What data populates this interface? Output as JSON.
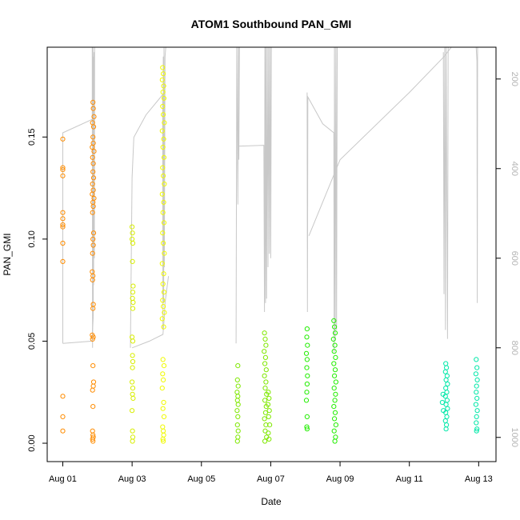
{
  "chart_data": {
    "type": "scatter",
    "title": "ATOM1 Southbound PAN_GMI",
    "xlabel": "Date",
    "ylabel": "PAN_GMI",
    "x_ticks": [
      "Aug 01",
      "Aug 03",
      "Aug 05",
      "Aug 07",
      "Aug 09",
      "Aug 11",
      "Aug 13"
    ],
    "x_tick_days": [
      1,
      3,
      5,
      7,
      9,
      11,
      13
    ],
    "x_range_days": [
      0.55,
      13.5
    ],
    "ylim": [
      -0.009,
      0.194
    ],
    "y_ticks": [
      0.0,
      0.05,
      0.1,
      0.15
    ],
    "y_tick_labels": [
      "0.00",
      "0.05",
      "0.10",
      "0.15"
    ],
    "right_axis": {
      "ticks": [
        200,
        400,
        600,
        800,
        1000
      ],
      "range": [
        1054,
        129
      ],
      "color": "#b4b4b4"
    },
    "grid": false,
    "legend": "none",
    "marker": "open circle",
    "altitude_color": "#c8c8c8",
    "series": [
      {
        "color": "#ff8c00",
        "points": [
          [
            1.0,
            0.149
          ],
          [
            1.0,
            0.135
          ],
          [
            1.0,
            0.134
          ],
          [
            1.0,
            0.131
          ],
          [
            1.0,
            0.113
          ],
          [
            1.0,
            0.11
          ],
          [
            1.0,
            0.107
          ],
          [
            1.0,
            0.106
          ],
          [
            1.0,
            0.098
          ],
          [
            1.0,
            0.089
          ],
          [
            1.0,
            0.023
          ],
          [
            1.0,
            0.013
          ],
          [
            1.0,
            0.006
          ],
          [
            1.87,
            0.167
          ],
          [
            1.88,
            0.164
          ],
          [
            1.9,
            0.16
          ],
          [
            1.86,
            0.157
          ],
          [
            1.89,
            0.155
          ],
          [
            1.87,
            0.15
          ],
          [
            1.88,
            0.147
          ],
          [
            1.85,
            0.145
          ],
          [
            1.9,
            0.143
          ],
          [
            1.86,
            0.14
          ],
          [
            1.88,
            0.137
          ],
          [
            1.87,
            0.133
          ],
          [
            1.89,
            0.13
          ],
          [
            1.86,
            0.127
          ],
          [
            1.88,
            0.124
          ],
          [
            1.85,
            0.122
          ],
          [
            1.9,
            0.12
          ],
          [
            1.87,
            0.118
          ],
          [
            1.88,
            0.116
          ],
          [
            1.86,
            0.113
          ],
          [
            1.89,
            0.103
          ],
          [
            1.87,
            0.1
          ],
          [
            1.88,
            0.097
          ],
          [
            1.86,
            0.093
          ],
          [
            1.85,
            0.084
          ],
          [
            1.87,
            0.082
          ],
          [
            1.86,
            0.08
          ],
          [
            1.88,
            0.068
          ],
          [
            1.87,
            0.066
          ],
          [
            1.85,
            0.053
          ],
          [
            1.88,
            0.052
          ],
          [
            1.86,
            0.051
          ],
          [
            1.87,
            0.038
          ],
          [
            1.89,
            0.03
          ],
          [
            1.88,
            0.028
          ],
          [
            1.86,
            0.026
          ],
          [
            1.87,
            0.018
          ],
          [
            1.86,
            0.006
          ],
          [
            1.87,
            0.004
          ],
          [
            1.88,
            0.003
          ],
          [
            1.86,
            0.002
          ],
          [
            1.87,
            0.001
          ]
        ]
      },
      {
        "color": "#d8ee00",
        "points": [
          [
            3.0,
            0.106
          ],
          [
            3.01,
            0.103
          ],
          [
            3.0,
            0.1
          ],
          [
            3.02,
            0.098
          ],
          [
            3.01,
            0.089
          ],
          [
            3.03,
            0.077
          ],
          [
            3.02,
            0.074
          ],
          [
            3.01,
            0.071
          ],
          [
            3.03,
            0.069
          ],
          [
            3.02,
            0.066
          ],
          [
            3.0,
            0.052
          ],
          [
            3.02,
            0.05
          ],
          [
            3.01,
            0.043
          ],
          [
            3.02,
            0.04
          ],
          [
            3.01,
            0.037
          ],
          [
            3.0,
            0.03
          ],
          [
            3.02,
            0.027
          ],
          [
            3.01,
            0.024
          ],
          [
            3.03,
            0.022
          ],
          [
            3.0,
            0.016
          ],
          [
            3.01,
            0.006
          ],
          [
            3.02,
            0.003
          ],
          [
            3.01,
            0.001
          ]
        ]
      },
      {
        "color": "#f0fa00",
        "points": [
          [
            3.88,
            0.184
          ],
          [
            3.9,
            0.181
          ],
          [
            3.87,
            0.178
          ],
          [
            3.91,
            0.175
          ],
          [
            3.89,
            0.172
          ],
          [
            3.92,
            0.169
          ],
          [
            3.88,
            0.165
          ],
          [
            3.9,
            0.161
          ],
          [
            3.93,
            0.157
          ],
          [
            3.87,
            0.153
          ],
          [
            3.91,
            0.149
          ],
          [
            3.89,
            0.145
          ],
          [
            3.92,
            0.14
          ],
          [
            3.88,
            0.135
          ],
          [
            3.9,
            0.131
          ],
          [
            3.93,
            0.127
          ],
          [
            3.87,
            0.122
          ],
          [
            3.91,
            0.118
          ],
          [
            3.89,
            0.113
          ],
          [
            3.92,
            0.108
          ],
          [
            3.88,
            0.103
          ],
          [
            3.9,
            0.098
          ],
          [
            3.93,
            0.093
          ],
          [
            3.87,
            0.088
          ],
          [
            3.91,
            0.083
          ],
          [
            3.89,
            0.078
          ],
          [
            3.92,
            0.074
          ],
          [
            3.88,
            0.07
          ],
          [
            3.9,
            0.067
          ],
          [
            3.93,
            0.064
          ],
          [
            3.87,
            0.061
          ],
          [
            3.91,
            0.057
          ],
          [
            3.89,
            0.041
          ],
          [
            3.92,
            0.038
          ],
          [
            3.88,
            0.034
          ],
          [
            3.9,
            0.031
          ],
          [
            3.87,
            0.027
          ],
          [
            3.91,
            0.02
          ],
          [
            3.89,
            0.017
          ],
          [
            3.92,
            0.013
          ],
          [
            3.88,
            0.008
          ],
          [
            3.9,
            0.006
          ],
          [
            3.91,
            0.004
          ],
          [
            3.89,
            0.002
          ],
          [
            3.9,
            0.001
          ]
        ]
      },
      {
        "color": "#7fe800",
        "points": [
          [
            6.05,
            0.038
          ],
          [
            6.04,
            0.031
          ],
          [
            6.06,
            0.028
          ],
          [
            6.03,
            0.025
          ],
          [
            6.05,
            0.023
          ],
          [
            6.04,
            0.021
          ],
          [
            6.06,
            0.019
          ],
          [
            6.03,
            0.016
          ],
          [
            6.05,
            0.013
          ],
          [
            6.04,
            0.009
          ],
          [
            6.06,
            0.006
          ],
          [
            6.05,
            0.003
          ],
          [
            6.04,
            0.001
          ],
          [
            6.82,
            0.054
          ],
          [
            6.84,
            0.051
          ],
          [
            6.86,
            0.048
          ],
          [
            6.81,
            0.045
          ],
          [
            6.85,
            0.042
          ],
          [
            6.83,
            0.039
          ],
          [
            6.87,
            0.036
          ],
          [
            6.82,
            0.033
          ],
          [
            6.86,
            0.03
          ],
          [
            6.84,
            0.027
          ],
          [
            6.88,
            0.024
          ],
          [
            6.83,
            0.021
          ],
          [
            6.87,
            0.018
          ],
          [
            6.85,
            0.015
          ],
          [
            6.82,
            0.012
          ],
          [
            6.86,
            0.009
          ],
          [
            6.84,
            0.006
          ],
          [
            6.88,
            0.003
          ],
          [
            6.83,
            0.001
          ],
          [
            6.93,
            0.025
          ],
          [
            6.95,
            0.022
          ],
          [
            6.92,
            0.019
          ],
          [
            6.96,
            0.016
          ],
          [
            6.94,
            0.013
          ],
          [
            6.97,
            0.009
          ],
          [
            6.93,
            0.005
          ],
          [
            6.95,
            0.002
          ]
        ]
      },
      {
        "color": "#22ee00",
        "points": [
          [
            8.05,
            0.056
          ],
          [
            8.04,
            0.052
          ],
          [
            8.06,
            0.048
          ],
          [
            8.03,
            0.044
          ],
          [
            8.05,
            0.041
          ],
          [
            8.04,
            0.037
          ],
          [
            8.06,
            0.033
          ],
          [
            8.05,
            0.029
          ],
          [
            8.04,
            0.025
          ],
          [
            8.03,
            0.021
          ],
          [
            8.05,
            0.013
          ],
          [
            8.04,
            0.008
          ],
          [
            8.05,
            0.007
          ],
          [
            8.82,
            0.06
          ],
          [
            8.84,
            0.057
          ],
          [
            8.86,
            0.054
          ],
          [
            8.81,
            0.051
          ],
          [
            8.85,
            0.048
          ],
          [
            8.83,
            0.045
          ],
          [
            8.87,
            0.042
          ],
          [
            8.82,
            0.039
          ],
          [
            8.86,
            0.036
          ],
          [
            8.84,
            0.033
          ],
          [
            8.88,
            0.03
          ],
          [
            8.83,
            0.027
          ],
          [
            8.87,
            0.024
          ],
          [
            8.85,
            0.021
          ],
          [
            8.82,
            0.018
          ],
          [
            8.86,
            0.015
          ],
          [
            8.84,
            0.012
          ],
          [
            8.88,
            0.009
          ],
          [
            8.83,
            0.006
          ],
          [
            8.87,
            0.003
          ],
          [
            8.85,
            0.001
          ]
        ]
      },
      {
        "color": "#00e8a8",
        "points": [
          [
            12.05,
            0.039
          ],
          [
            12.07,
            0.037
          ],
          [
            12.04,
            0.035
          ],
          [
            12.09,
            0.033
          ],
          [
            12.06,
            0.031
          ],
          [
            12.1,
            0.029
          ],
          [
            12.05,
            0.027
          ],
          [
            12.08,
            0.025
          ],
          [
            12.04,
            0.023
          ],
          [
            12.09,
            0.021
          ],
          [
            12.06,
            0.019
          ],
          [
            12.1,
            0.017
          ],
          [
            12.05,
            0.015
          ],
          [
            12.08,
            0.013
          ],
          [
            12.04,
            0.011
          ],
          [
            12.07,
            0.009
          ],
          [
            12.06,
            0.007
          ],
          [
            11.97,
            0.024
          ],
          [
            11.95,
            0.02
          ],
          [
            11.98,
            0.016
          ],
          [
            12.93,
            0.041
          ],
          [
            12.95,
            0.037
          ],
          [
            12.92,
            0.034
          ],
          [
            12.96,
            0.031
          ],
          [
            12.94,
            0.028
          ],
          [
            12.93,
            0.025
          ],
          [
            12.95,
            0.022
          ],
          [
            12.92,
            0.019
          ],
          [
            12.96,
            0.016
          ],
          [
            12.94,
            0.013
          ],
          [
            12.93,
            0.01
          ],
          [
            12.95,
            0.007
          ],
          [
            12.94,
            0.006
          ]
        ]
      }
    ]
  }
}
